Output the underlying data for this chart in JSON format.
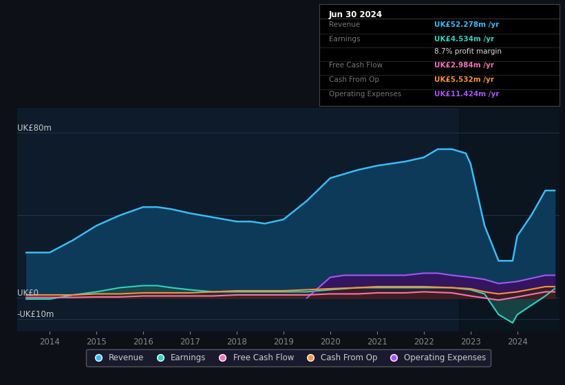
{
  "bg_color": "#0d1117",
  "plot_bg_color": "#0d1b2a",
  "grid_color": "#263d5a",
  "title_box": {
    "date": "Jun 30 2024",
    "rows": [
      {
        "label": "Revenue",
        "value": "UK£52.278m /yr",
        "value_color": "#38bdf8",
        "bold_value": true
      },
      {
        "label": "Earnings",
        "value": "UK£4.534m /yr",
        "value_color": "#2dd4bf",
        "bold_value": true
      },
      {
        "label": "",
        "value": "8.7% profit margin",
        "value_color": "#dddddd",
        "bold_value": false
      },
      {
        "label": "Free Cash Flow",
        "value": "UK£2.984m /yr",
        "value_color": "#f472b6",
        "bold_value": true
      },
      {
        "label": "Cash From Op",
        "value": "UK£5.532m /yr",
        "value_color": "#fb923c",
        "bold_value": true
      },
      {
        "label": "Operating Expenses",
        "value": "UK£11.424m /yr",
        "value_color": "#a855f7",
        "bold_value": true
      }
    ]
  },
  "ylabel_top": "UK£80m",
  "ylabel_zero": "UK£0",
  "ylabel_bottom": "-UK£10m",
  "xlim": [
    2013.3,
    2024.9
  ],
  "ylim": [
    -16,
    92
  ],
  "xticks": [
    2014,
    2015,
    2016,
    2017,
    2018,
    2019,
    2020,
    2021,
    2022,
    2023,
    2024
  ],
  "ytick_positions": [
    80,
    40,
    0,
    -10
  ],
  "revenue_color": "#38bdf8",
  "revenue_fill": "#0e3a5a",
  "earnings_color": "#2dd4bf",
  "earnings_fill": "#1a4a4a",
  "fcf_color": "#f472b6",
  "fcf_fill": "#5a1a3a",
  "cashfromop_color": "#fb923c",
  "cashfromop_fill": "#3a2010",
  "opex_color": "#a855f7",
  "opex_fill": "#3a1060",
  "revenue": {
    "x": [
      2013.5,
      2014.0,
      2014.5,
      2015.0,
      2015.5,
      2016.0,
      2016.3,
      2016.6,
      2017.0,
      2017.5,
      2018.0,
      2018.3,
      2018.6,
      2019.0,
      2019.5,
      2020.0,
      2020.3,
      2020.6,
      2021.0,
      2021.3,
      2021.6,
      2022.0,
      2022.3,
      2022.6,
      2022.9,
      2023.0,
      2023.3,
      2023.6,
      2023.9,
      2024.0,
      2024.3,
      2024.6,
      2024.8
    ],
    "y": [
      22,
      22,
      28,
      35,
      40,
      44,
      44,
      43,
      41,
      39,
      37,
      37,
      36,
      38,
      47,
      58,
      60,
      62,
      64,
      65,
      66,
      68,
      72,
      72,
      70,
      65,
      35,
      18,
      18,
      30,
      40,
      52,
      52
    ]
  },
  "earnings": {
    "x": [
      2013.5,
      2014.0,
      2014.5,
      2015.0,
      2015.5,
      2016.0,
      2016.3,
      2016.6,
      2017.0,
      2017.5,
      2018.0,
      2018.6,
      2019.0,
      2019.5,
      2020.0,
      2020.6,
      2021.0,
      2021.6,
      2022.0,
      2022.6,
      2023.0,
      2023.3,
      2023.6,
      2023.9,
      2024.0,
      2024.6,
      2024.8
    ],
    "y": [
      -0.5,
      -0.5,
      1.5,
      3,
      5,
      6,
      6,
      5,
      4,
      3,
      3,
      3,
      3,
      3,
      4,
      5,
      5,
      5,
      5,
      5,
      4,
      2,
      -8,
      -12,
      -8,
      1,
      4.5
    ]
  },
  "fcf": {
    "x": [
      2013.5,
      2014.0,
      2014.5,
      2015.0,
      2015.5,
      2016.0,
      2016.6,
      2017.0,
      2017.5,
      2018.0,
      2018.6,
      2019.0,
      2019.5,
      2020.0,
      2020.6,
      2021.0,
      2021.6,
      2022.0,
      2022.6,
      2023.0,
      2023.6,
      2024.0,
      2024.6,
      2024.8
    ],
    "y": [
      0.3,
      0.3,
      0.3,
      0.5,
      0.5,
      1.0,
      1.0,
      1.0,
      1.0,
      1.5,
      1.5,
      1.5,
      1.5,
      2.0,
      2.0,
      2.5,
      2.5,
      3.0,
      2.5,
      1.0,
      -1.0,
      0.5,
      3.0,
      3.0
    ]
  },
  "cashfromop": {
    "x": [
      2013.5,
      2014.0,
      2014.5,
      2015.0,
      2015.5,
      2016.0,
      2016.6,
      2017.0,
      2017.5,
      2018.0,
      2018.6,
      2019.0,
      2019.5,
      2020.0,
      2020.6,
      2021.0,
      2021.6,
      2022.0,
      2022.6,
      2023.0,
      2023.3,
      2023.6,
      2024.0,
      2024.6,
      2024.8
    ],
    "y": [
      1.5,
      1.5,
      1.5,
      2.0,
      2.0,
      2.5,
      2.5,
      2.5,
      3.0,
      3.5,
      3.5,
      3.5,
      4.0,
      4.5,
      5.0,
      5.5,
      5.5,
      5.5,
      5.0,
      4.5,
      3.0,
      2.0,
      3.0,
      5.5,
      5.5
    ]
  },
  "opex": {
    "x": [
      2019.5,
      2020.0,
      2020.3,
      2020.6,
      2021.0,
      2021.6,
      2022.0,
      2022.3,
      2022.6,
      2023.0,
      2023.3,
      2023.6,
      2024.0,
      2024.6,
      2024.8
    ],
    "y": [
      0,
      10,
      11,
      11,
      11,
      11,
      12,
      12,
      11,
      10,
      9,
      7,
      8,
      11,
      11
    ]
  },
  "legend": [
    {
      "label": "Revenue",
      "color": "#38bdf8"
    },
    {
      "label": "Earnings",
      "color": "#2dd4bf"
    },
    {
      "label": "Free Cash Flow",
      "color": "#f472b6"
    },
    {
      "label": "Cash From Op",
      "color": "#fb923c"
    },
    {
      "label": "Operating Expenses",
      "color": "#a855f7"
    }
  ]
}
